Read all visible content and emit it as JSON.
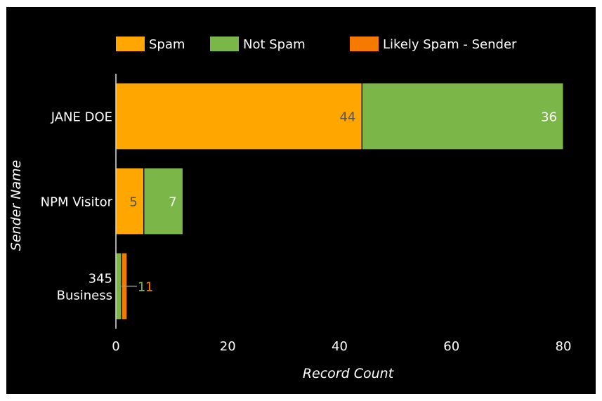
{
  "chart_data": {
    "type": "bar",
    "orientation": "horizontal",
    "stacked": true,
    "categories": [
      "JANE DOE",
      "NPM Visitor",
      "345 Business"
    ],
    "category_lines": [
      [
        "JANE DOE"
      ],
      [
        "NPM Visitor"
      ],
      [
        "345",
        "Business"
      ]
    ],
    "series": [
      {
        "name": "Spam",
        "color": "#FFA600",
        "label_color": "#555555",
        "values": [
          44,
          5,
          0
        ]
      },
      {
        "name": "Not Spam",
        "color": "#7AB648",
        "label_color": "#ffffff",
        "values": [
          36,
          7,
          1
        ]
      },
      {
        "name": "Likely Spam - Sender",
        "color": "#F77A00",
        "label_color": "#F77A00",
        "values": [
          0,
          0,
          1
        ]
      }
    ],
    "xlabel": "Record Count",
    "ylabel": "Sender Name",
    "xlim": [
      0,
      80
    ],
    "xticks": [
      0,
      20,
      40,
      60,
      80
    ],
    "grid": false,
    "legend_position": "top"
  }
}
